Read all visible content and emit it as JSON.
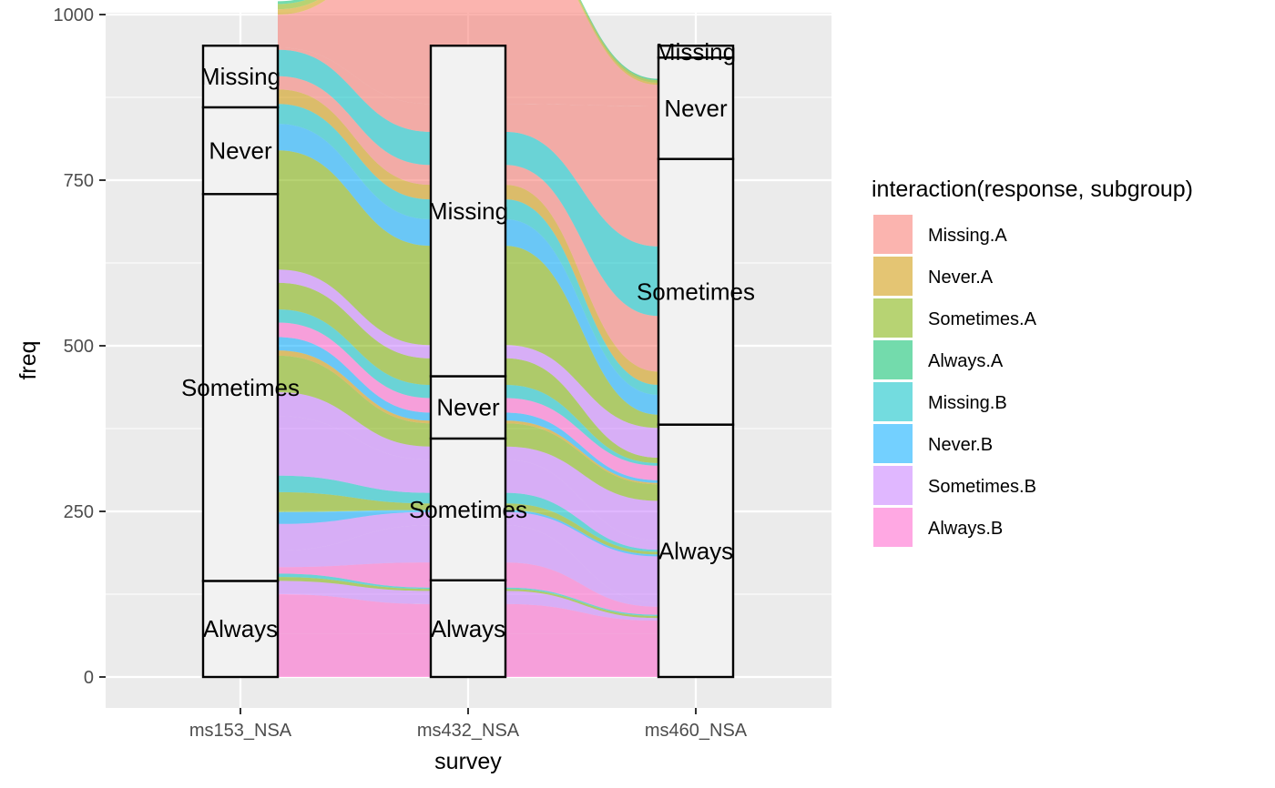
{
  "chart_data": {
    "type": "alluvial",
    "xlabel": "survey",
    "ylabel": "freq",
    "ylim": [
      0,
      1000
    ],
    "yticks": [
      0,
      250,
      500,
      750,
      1000
    ],
    "axes": [
      "ms153_NSA",
      "ms432_NSA",
      "ms460_NSA"
    ],
    "strata": [
      [
        {
          "label": "Always",
          "from": 0,
          "to": 145
        },
        {
          "label": "Sometimes",
          "from": 145,
          "to": 729
        },
        {
          "label": "Never",
          "from": 729,
          "to": 860
        },
        {
          "label": "Missing",
          "from": 860,
          "to": 953
        }
      ],
      [
        {
          "label": "Always",
          "from": 0,
          "to": 146
        },
        {
          "label": "Sometimes",
          "from": 146,
          "to": 360
        },
        {
          "label": "Never",
          "from": 360,
          "to": 454
        },
        {
          "label": "Missing",
          "from": 454,
          "to": 953
        }
      ],
      [
        {
          "label": "Always",
          "from": 0,
          "to": 381
        },
        {
          "label": "Sometimes",
          "from": 381,
          "to": 782
        },
        {
          "label": "Never",
          "from": 782,
          "to": 935
        },
        {
          "label": "Missing",
          "from": 935,
          "to": 953
        }
      ]
    ],
    "legend": {
      "title": "interaction(response, subgroup)",
      "position": "right",
      "items": [
        {
          "label": "Missing.A",
          "color": "#F8766D"
        },
        {
          "label": "Never.A",
          "color": "#CD9600"
        },
        {
          "label": "Sometimes.A",
          "color": "#7CAE00"
        },
        {
          "label": "Always.A",
          "color": "#00BE67"
        },
        {
          "label": "Missing.B",
          "color": "#00BFC4"
        },
        {
          "label": "Never.B",
          "color": "#00A9FF"
        },
        {
          "label": "Sometimes.B",
          "color": "#C77CFF"
        },
        {
          "label": "Always.B",
          "color": "#FF61CC"
        }
      ]
    },
    "flows": [
      {
        "group": "Always.B",
        "values": [
          55,
          55,
          55
        ]
      },
      {
        "group": "Always.B",
        "values": [
          10,
          10,
          10
        ]
      },
      {
        "group": "Always.B",
        "values": [
          60,
          45,
          20
        ]
      },
      {
        "group": "Sometimes.B",
        "values": [
          20,
          20,
          4
        ]
      },
      {
        "group": "Sometimes.A",
        "values": [
          6,
          3,
          3
        ]
      },
      {
        "group": "Missing.B",
        "values": [
          5,
          2,
          2
        ]
      },
      {
        "group": "Always.B",
        "values": [
          10,
          38,
          12
        ]
      },
      {
        "group": "Sometimes.B",
        "values": [
          25,
          56,
          6
        ]
      },
      {
        "group": "Sometimes.B",
        "values": [
          40,
          20,
          70
        ]
      },
      {
        "group": "Never.B",
        "values": [
          18,
          3,
          3
        ]
      },
      {
        "group": "Sometimes.A",
        "values": [
          30,
          10,
          4
        ]
      },
      {
        "group": "Missing.B",
        "values": [
          25,
          16,
          3
        ]
      },
      {
        "group": "Sometimes.B",
        "values": [
          90,
          50,
          14
        ]
      },
      {
        "group": "Sometimes.B",
        "values": [
          36,
          20,
          60
        ]
      },
      {
        "group": "Sometimes.A",
        "values": [
          55,
          35,
          25
        ]
      },
      {
        "group": "Never.A",
        "values": [
          8,
          4,
          2
        ]
      },
      {
        "group": "Never.B",
        "values": [
          20,
          12,
          4
        ]
      },
      {
        "group": "Always.B",
        "values": [
          22,
          22,
          22
        ]
      },
      {
        "group": "Missing.B",
        "values": [
          20,
          20,
          4
        ]
      },
      {
        "group": "Sometimes.A",
        "values": [
          40,
          40,
          8
        ]
      },
      {
        "group": "Sometimes.B",
        "values": [
          20,
          20,
          45
        ]
      },
      {
        "group": "Sometimes.A",
        "values": [
          180,
          150,
          20
        ]
      },
      {
        "group": "Never.B",
        "values": [
          40,
          40,
          30
        ]
      },
      {
        "group": "Missing.B",
        "values": [
          30,
          30,
          15
        ]
      },
      {
        "group": "Never.A",
        "values": [
          22,
          22,
          20
        ]
      },
      {
        "group": "Missing.A",
        "values": [
          20,
          30,
          84
        ]
      },
      {
        "group": "Missing.B",
        "values": [
          40,
          50,
          105
        ]
      },
      {
        "group": "Missing.A",
        "values": [
          3,
          42,
          212
        ]
      },
      {
        "group": "Missing.A",
        "values": [
          50,
          260,
          32
        ]
      },
      {
        "group": "Never.A",
        "values": [
          8,
          3,
          3
        ]
      },
      {
        "group": "Sometimes.A",
        "values": [
          8,
          4,
          4
        ]
      },
      {
        "group": "Always.A",
        "values": [
          4,
          2,
          2
        ]
      }
    ]
  }
}
